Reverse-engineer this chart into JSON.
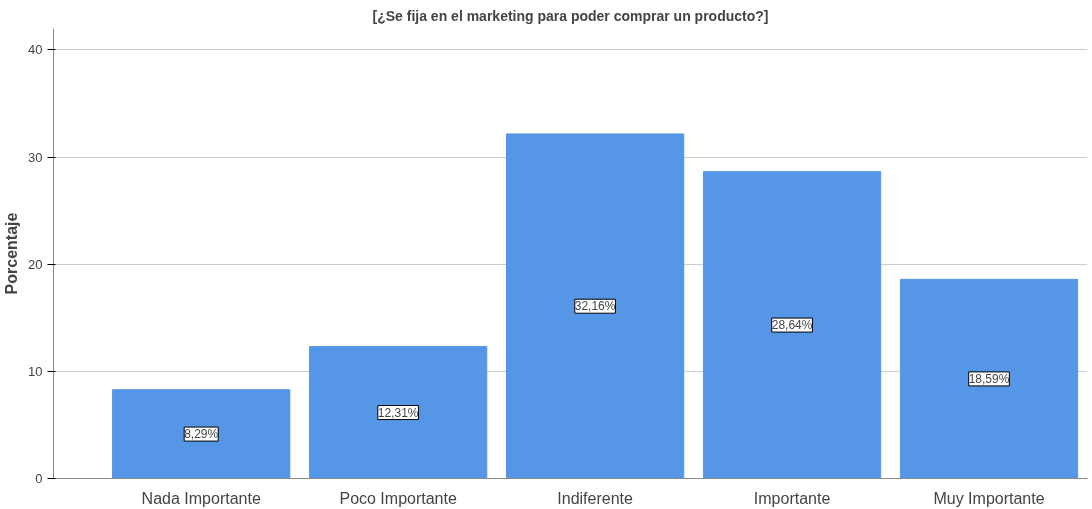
{
  "chart_data": {
    "type": "bar",
    "title": "[¿Se fija en el marketing para poder comprar un producto?]",
    "ylabel": "Porcentaje",
    "categories": [
      "Nada Importante",
      "Poco Importante",
      "Indiferente",
      "Importante",
      "Muy Importante"
    ],
    "values": [
      8.29,
      12.31,
      32.16,
      28.64,
      18.59
    ],
    "value_labels": [
      "8,29%",
      "12,31%",
      "32,16%",
      "28,64%",
      "18,59%"
    ],
    "color": "#5596e6",
    "ylim": [
      0,
      42
    ],
    "yticks": [
      0,
      10,
      20,
      30,
      40
    ],
    "grid": "y"
  }
}
